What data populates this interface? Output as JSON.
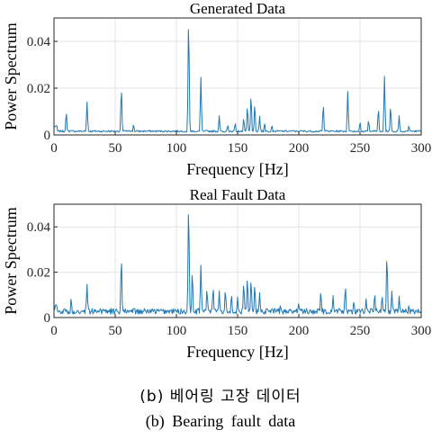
{
  "chart_data": [
    {
      "type": "line",
      "title": "Generated Data",
      "xlabel": "Frequency [Hz]",
      "ylabel": "Power Spectrum",
      "xlim": [
        0,
        300
      ],
      "ylim": [
        0,
        0.05
      ],
      "xticks": [
        0,
        50,
        100,
        150,
        200,
        250,
        300
      ],
      "yticks": [
        0,
        0.02,
        0.04
      ],
      "ytick_labels": [
        "0",
        "0.02",
        "0.04"
      ],
      "grid": true,
      "color": "#1f77b4",
      "baseline": 0.0012,
      "noise": 0.0008,
      "peaks": [
        [
          10,
          0.0095
        ],
        [
          27,
          0.014
        ],
        [
          55,
          0.0193
        ],
        [
          65,
          0.0045
        ],
        [
          110,
          0.049
        ],
        [
          120,
          0.0245
        ],
        [
          135,
          0.008
        ],
        [
          142,
          0.004
        ],
        [
          148,
          0.005
        ],
        [
          155,
          0.007
        ],
        [
          158,
          0.012
        ],
        [
          161,
          0.0165
        ],
        [
          164,
          0.013
        ],
        [
          168,
          0.008
        ],
        [
          172,
          0.005
        ],
        [
          178,
          0.004
        ],
        [
          220,
          0.0128
        ],
        [
          240,
          0.0185
        ],
        [
          250,
          0.0055
        ],
        [
          257,
          0.006
        ],
        [
          265,
          0.011
        ],
        [
          270,
          0.025
        ],
        [
          275,
          0.012
        ],
        [
          282,
          0.008
        ],
        [
          290,
          0.004
        ]
      ]
    },
    {
      "type": "line",
      "title": "Real Fault Data",
      "xlabel": "Frequency [Hz]",
      "ylabel": "Power Spectrum",
      "xlim": [
        0,
        300
      ],
      "ylim": [
        0,
        0.05
      ],
      "xticks": [
        0,
        50,
        100,
        150,
        200,
        250,
        300
      ],
      "yticks": [
        0,
        0.02,
        0.04
      ],
      "ytick_labels": [
        "0",
        "0.02",
        "0.04"
      ],
      "grid": true,
      "color": "#1f77b4",
      "baseline": 0.0015,
      "noise": 0.0025,
      "peaks": [
        [
          10,
          0.003
        ],
        [
          14,
          0.008
        ],
        [
          27,
          0.014
        ],
        [
          38,
          0.004
        ],
        [
          55,
          0.0255
        ],
        [
          65,
          0.004
        ],
        [
          110,
          0.049
        ],
        [
          113,
          0.02
        ],
        [
          120,
          0.023
        ],
        [
          125,
          0.012
        ],
        [
          130,
          0.013
        ],
        [
          135,
          0.011
        ],
        [
          140,
          0.012
        ],
        [
          145,
          0.01
        ],
        [
          150,
          0.009
        ],
        [
          155,
          0.015
        ],
        [
          158,
          0.017
        ],
        [
          161,
          0.016
        ],
        [
          164,
          0.014
        ],
        [
          168,
          0.011
        ],
        [
          185,
          0.005
        ],
        [
          200,
          0.006
        ],
        [
          218,
          0.011
        ],
        [
          228,
          0.009
        ],
        [
          238,
          0.013
        ],
        [
          245,
          0.007
        ],
        [
          255,
          0.008
        ],
        [
          262,
          0.01
        ],
        [
          268,
          0.009
        ],
        [
          272,
          0.0265
        ],
        [
          276,
          0.011
        ],
        [
          282,
          0.009
        ],
        [
          290,
          0.005
        ]
      ]
    }
  ],
  "captions": {
    "korean": "(b) 베어링 고장 데이터",
    "english": "(b) Bearing fault data"
  }
}
